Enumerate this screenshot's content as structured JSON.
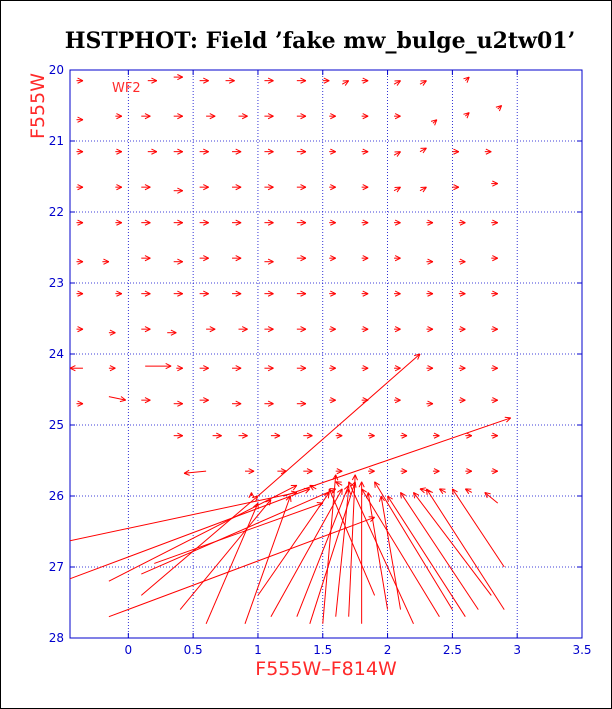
{
  "chart_data": {
    "type": "vector-field",
    "title": "HSTPHOT: Field ’fake mw_bulge_u2tw01’",
    "xlabel": "F555W–F814W",
    "ylabel": "F555W",
    "annotation": "WF2",
    "xlim": [
      -0.45,
      3.5
    ],
    "ylim": [
      28,
      20
    ],
    "y_inverted": true,
    "grid": true,
    "xticks": [
      0,
      0.5,
      1,
      1.5,
      2,
      2.5,
      3,
      3.5
    ],
    "yticks": [
      20,
      21,
      22,
      23,
      24,
      25,
      26,
      27,
      28
    ],
    "colors": {
      "grid": "#0000cc",
      "arrows": "#ff0000",
      "axes": "#0000cc",
      "labels": "#ff2a2a"
    },
    "short_vectors": [
      [
        -0.4,
        20.15,
        -0.35,
        20.15
      ],
      [
        0.15,
        20.15,
        0.22,
        20.15
      ],
      [
        0.35,
        20.1,
        0.42,
        20.1
      ],
      [
        0.55,
        20.15,
        0.62,
        20.15
      ],
      [
        0.75,
        20.15,
        0.82,
        20.15
      ],
      [
        1.05,
        20.15,
        1.12,
        20.15
      ],
      [
        1.3,
        20.15,
        1.37,
        20.15
      ],
      [
        1.5,
        20.15,
        1.55,
        20.15
      ],
      [
        1.65,
        20.2,
        1.7,
        20.15
      ],
      [
        1.8,
        20.15,
        1.85,
        20.15
      ],
      [
        2.05,
        20.2,
        2.1,
        20.15
      ],
      [
        2.25,
        20.2,
        2.3,
        20.15
      ],
      [
        2.6,
        20.15,
        2.63,
        20.1
      ],
      [
        -0.4,
        20.7,
        -0.35,
        20.7
      ],
      [
        -0.1,
        20.65,
        -0.05,
        20.65
      ],
      [
        0.1,
        20.65,
        0.17,
        20.65
      ],
      [
        0.35,
        20.65,
        0.42,
        20.65
      ],
      [
        0.6,
        20.65,
        0.67,
        20.65
      ],
      [
        0.85,
        20.65,
        0.92,
        20.65
      ],
      [
        1.05,
        20.65,
        1.12,
        20.65
      ],
      [
        1.3,
        20.65,
        1.37,
        20.65
      ],
      [
        1.55,
        20.65,
        1.6,
        20.65
      ],
      [
        1.8,
        20.65,
        1.85,
        20.65
      ],
      [
        2.05,
        20.65,
        2.1,
        20.65
      ],
      [
        2.35,
        20.75,
        2.38,
        20.7
      ],
      [
        2.6,
        20.65,
        2.63,
        20.6
      ],
      [
        2.85,
        20.55,
        2.88,
        20.5
      ],
      [
        -0.4,
        21.15,
        -0.35,
        21.15
      ],
      [
        -0.1,
        21.15,
        -0.05,
        21.15
      ],
      [
        0.15,
        21.15,
        0.22,
        21.15
      ],
      [
        0.35,
        21.15,
        0.42,
        21.15
      ],
      [
        0.55,
        21.15,
        0.62,
        21.15
      ],
      [
        0.8,
        21.15,
        0.87,
        21.15
      ],
      [
        1.05,
        21.15,
        1.12,
        21.15
      ],
      [
        1.3,
        21.15,
        1.37,
        21.15
      ],
      [
        1.55,
        21.15,
        1.6,
        21.15
      ],
      [
        1.8,
        21.15,
        1.85,
        21.15
      ],
      [
        2.05,
        21.2,
        2.1,
        21.15
      ],
      [
        2.25,
        21.15,
        2.3,
        21.1
      ],
      [
        2.5,
        21.15,
        2.55,
        21.15
      ],
      [
        2.75,
        21.15,
        2.8,
        21.15
      ],
      [
        -0.4,
        21.65,
        -0.35,
        21.65
      ],
      [
        -0.1,
        21.65,
        -0.05,
        21.65
      ],
      [
        0.1,
        21.65,
        0.17,
        21.65
      ],
      [
        0.35,
        21.7,
        0.42,
        21.7
      ],
      [
        0.55,
        21.65,
        0.62,
        21.65
      ],
      [
        0.8,
        21.65,
        0.87,
        21.65
      ],
      [
        1.05,
        21.65,
        1.12,
        21.65
      ],
      [
        1.3,
        21.65,
        1.37,
        21.65
      ],
      [
        1.55,
        21.65,
        1.6,
        21.65
      ],
      [
        1.8,
        21.65,
        1.85,
        21.65
      ],
      [
        2.05,
        21.7,
        2.1,
        21.65
      ],
      [
        2.25,
        21.7,
        2.3,
        21.65
      ],
      [
        2.5,
        21.65,
        2.55,
        21.65
      ],
      [
        2.8,
        21.6,
        2.85,
        21.6
      ],
      [
        -0.4,
        22.15,
        -0.35,
        22.15
      ],
      [
        -0.1,
        22.15,
        -0.05,
        22.15
      ],
      [
        0.1,
        22.15,
        0.17,
        22.15
      ],
      [
        0.35,
        22.15,
        0.42,
        22.15
      ],
      [
        0.55,
        22.15,
        0.62,
        22.15
      ],
      [
        0.8,
        22.15,
        0.87,
        22.15
      ],
      [
        1.05,
        22.15,
        1.12,
        22.15
      ],
      [
        1.3,
        22.15,
        1.37,
        22.15
      ],
      [
        1.55,
        22.15,
        1.6,
        22.15
      ],
      [
        1.8,
        22.15,
        1.85,
        22.15
      ],
      [
        2.05,
        22.15,
        2.1,
        22.15
      ],
      [
        2.3,
        22.15,
        2.35,
        22.15
      ],
      [
        2.55,
        22.15,
        2.6,
        22.15
      ],
      [
        2.8,
        22.15,
        2.85,
        22.15
      ],
      [
        -0.4,
        22.7,
        -0.35,
        22.7
      ],
      [
        -0.2,
        22.7,
        -0.15,
        22.7
      ],
      [
        0.1,
        22.65,
        0.17,
        22.65
      ],
      [
        0.35,
        22.7,
        0.42,
        22.7
      ],
      [
        0.55,
        22.65,
        0.62,
        22.65
      ],
      [
        0.8,
        22.65,
        0.87,
        22.65
      ],
      [
        1.05,
        22.7,
        1.12,
        22.7
      ],
      [
        1.3,
        22.65,
        1.37,
        22.65
      ],
      [
        1.55,
        22.65,
        1.6,
        22.65
      ],
      [
        1.8,
        22.65,
        1.85,
        22.65
      ],
      [
        2.05,
        22.65,
        2.1,
        22.65
      ],
      [
        2.3,
        22.7,
        2.35,
        22.7
      ],
      [
        2.55,
        22.7,
        2.6,
        22.7
      ],
      [
        2.8,
        22.65,
        2.85,
        22.65
      ],
      [
        -0.4,
        23.15,
        -0.35,
        23.15
      ],
      [
        -0.1,
        23.15,
        -0.05,
        23.15
      ],
      [
        0.1,
        23.15,
        0.17,
        23.15
      ],
      [
        0.35,
        23.15,
        0.42,
        23.15
      ],
      [
        0.55,
        23.15,
        0.62,
        23.15
      ],
      [
        0.8,
        23.15,
        0.87,
        23.15
      ],
      [
        1.05,
        23.15,
        1.12,
        23.15
      ],
      [
        1.3,
        23.15,
        1.37,
        23.15
      ],
      [
        1.55,
        23.15,
        1.6,
        23.15
      ],
      [
        1.8,
        23.15,
        1.85,
        23.15
      ],
      [
        2.05,
        23.15,
        2.1,
        23.15
      ],
      [
        2.3,
        23.15,
        2.35,
        23.15
      ],
      [
        2.55,
        23.15,
        2.6,
        23.15
      ],
      [
        2.8,
        23.15,
        2.85,
        23.15
      ],
      [
        -0.4,
        23.65,
        -0.35,
        23.65
      ],
      [
        -0.15,
        23.7,
        -0.1,
        23.7
      ],
      [
        0.1,
        23.65,
        0.17,
        23.65
      ],
      [
        0.3,
        23.7,
        0.37,
        23.7
      ],
      [
        0.6,
        23.65,
        0.67,
        23.65
      ],
      [
        0.85,
        23.65,
        0.92,
        23.65
      ],
      [
        1.05,
        23.65,
        1.12,
        23.65
      ],
      [
        1.3,
        23.65,
        1.37,
        23.65
      ],
      [
        1.55,
        23.65,
        1.6,
        23.65
      ],
      [
        1.8,
        23.65,
        1.85,
        23.65
      ],
      [
        2.05,
        23.65,
        2.1,
        23.65
      ],
      [
        2.3,
        23.65,
        2.35,
        23.65
      ],
      [
        2.55,
        23.65,
        2.6,
        23.65
      ],
      [
        2.8,
        23.65,
        2.85,
        23.65
      ],
      [
        -0.35,
        24.2,
        -0.45,
        24.2
      ],
      [
        -0.15,
        24.2,
        -0.1,
        24.2
      ],
      [
        0.13,
        24.17,
        0.33,
        24.17
      ],
      [
        0.37,
        24.2,
        0.42,
        24.2
      ],
      [
        0.55,
        24.2,
        0.62,
        24.2
      ],
      [
        0.8,
        24.2,
        0.87,
        24.2
      ],
      [
        1.05,
        24.2,
        1.12,
        24.2
      ],
      [
        1.3,
        24.2,
        1.37,
        24.2
      ],
      [
        1.55,
        24.2,
        1.6,
        24.2
      ],
      [
        1.8,
        24.2,
        1.85,
        24.2
      ],
      [
        2.05,
        24.2,
        2.1,
        24.2
      ],
      [
        2.3,
        24.2,
        2.35,
        24.2
      ],
      [
        2.55,
        24.2,
        2.6,
        24.2
      ],
      [
        2.8,
        24.2,
        2.85,
        24.2
      ],
      [
        -0.4,
        24.7,
        -0.35,
        24.7
      ],
      [
        -0.15,
        24.6,
        -0.02,
        24.65
      ],
      [
        0.1,
        24.65,
        0.17,
        24.65
      ],
      [
        0.35,
        24.7,
        0.42,
        24.7
      ],
      [
        0.55,
        24.65,
        0.62,
        24.65
      ],
      [
        0.8,
        24.7,
        0.87,
        24.7
      ],
      [
        1.05,
        24.7,
        1.12,
        24.7
      ],
      [
        1.3,
        24.7,
        1.37,
        24.7
      ],
      [
        1.55,
        24.65,
        1.6,
        24.65
      ],
      [
        1.8,
        24.65,
        1.85,
        24.65
      ],
      [
        2.05,
        24.65,
        2.1,
        24.65
      ],
      [
        2.3,
        24.7,
        2.35,
        24.7
      ],
      [
        2.55,
        24.65,
        2.6,
        24.65
      ],
      [
        2.8,
        24.65,
        2.85,
        24.65
      ],
      [
        0.35,
        25.15,
        0.42,
        25.15
      ],
      [
        0.65,
        25.15,
        0.72,
        25.15
      ],
      [
        0.85,
        25.15,
        0.92,
        25.15
      ],
      [
        1.1,
        25.15,
        1.17,
        25.15
      ],
      [
        1.35,
        25.15,
        1.42,
        25.15
      ],
      [
        1.6,
        25.15,
        1.65,
        25.15
      ],
      [
        1.85,
        25.15,
        1.9,
        25.15
      ],
      [
        2.1,
        25.15,
        2.15,
        25.15
      ],
      [
        2.35,
        25.15,
        2.4,
        25.15
      ],
      [
        2.6,
        25.15,
        2.65,
        25.15
      ],
      [
        2.8,
        25.15,
        2.85,
        25.15
      ],
      [
        0.6,
        25.65,
        0.43,
        25.68
      ],
      [
        0.9,
        25.65,
        0.97,
        25.65
      ],
      [
        1.15,
        25.65,
        1.22,
        25.65
      ],
      [
        1.35,
        25.65,
        1.42,
        25.65
      ],
      [
        1.6,
        25.65,
        1.65,
        25.65
      ],
      [
        1.85,
        25.65,
        1.9,
        25.65
      ],
      [
        2.1,
        25.65,
        2.15,
        25.65
      ],
      [
        2.35,
        25.65,
        2.4,
        25.65
      ],
      [
        2.6,
        25.65,
        2.65,
        25.65
      ],
      [
        2.8,
        25.65,
        2.85,
        25.65
      ]
    ],
    "long_vectors": [
      [
        -0.5,
        26.65,
        1.3,
        25.95
      ],
      [
        -0.5,
        27.2,
        1.4,
        25.9
      ],
      [
        -0.15,
        27.2,
        1.3,
        25.85
      ],
      [
        0.1,
        27.1,
        1.6,
        25.9
      ],
      [
        -0.15,
        27.7,
        1.9,
        26.3
      ],
      [
        0.2,
        26.95,
        1.5,
        26.1
      ],
      [
        0.1,
        27.4,
        1.0,
        26.0
      ],
      [
        0.4,
        27.6,
        1.1,
        26.05
      ],
      [
        0.6,
        27.8,
        1.0,
        26.1
      ],
      [
        0.9,
        27.8,
        1.25,
        26.0
      ],
      [
        1.0,
        26.0,
        2.25,
        24.0
      ],
      [
        1.2,
        26.0,
        2.95,
        24.9
      ],
      [
        1.0,
        27.4,
        1.55,
        25.95
      ],
      [
        1.1,
        27.7,
        1.65,
        25.9
      ],
      [
        1.3,
        27.7,
        1.7,
        25.85
      ],
      [
        1.4,
        27.8,
        1.75,
        25.8
      ],
      [
        1.5,
        27.8,
        1.6,
        25.7
      ],
      [
        1.6,
        27.7,
        1.7,
        25.9
      ],
      [
        1.7,
        27.7,
        1.75,
        25.7
      ],
      [
        1.8,
        27.8,
        1.8,
        25.8
      ],
      [
        1.9,
        27.4,
        1.55,
        25.9
      ],
      [
        2.0,
        27.6,
        1.85,
        25.95
      ],
      [
        2.1,
        27.6,
        1.95,
        26.0
      ],
      [
        2.2,
        27.8,
        1.7,
        25.8
      ],
      [
        2.4,
        27.7,
        1.8,
        25.9
      ],
      [
        2.5,
        27.6,
        1.9,
        25.8
      ],
      [
        2.6,
        27.7,
        2.0,
        26.0
      ],
      [
        2.7,
        27.6,
        2.1,
        25.95
      ],
      [
        2.8,
        27.4,
        2.2,
        25.95
      ],
      [
        2.9,
        27.6,
        2.3,
        25.9
      ],
      [
        2.9,
        27.0,
        2.5,
        25.9
      ],
      [
        2.85,
        26.1,
        2.75,
        25.95
      ],
      [
        0.95,
        26.0,
        0.95,
        25.95
      ],
      [
        1.45,
        25.9,
        1.4,
        25.85
      ],
      [
        1.65,
        25.85,
        1.6,
        25.8
      ],
      [
        2.35,
        25.95,
        2.25,
        25.9
      ],
      [
        2.45,
        25.95,
        2.4,
        25.9
      ],
      [
        2.65,
        25.95,
        2.6,
        25.9
      ]
    ]
  }
}
